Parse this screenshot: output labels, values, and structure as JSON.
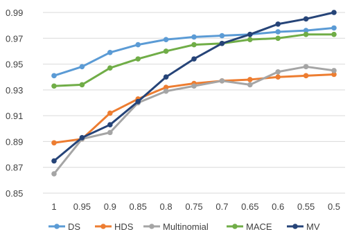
{
  "chart_data": {
    "type": "line",
    "title": "",
    "xlabel": "",
    "ylabel": "",
    "x": [
      "1",
      "0.95",
      "0.9",
      "0.85",
      "0.8",
      "0.75",
      "0.7",
      "0.65",
      "0.6",
      "0.55",
      "0.5"
    ],
    "ylim": [
      0.85,
      0.99
    ],
    "yticks": [
      "0.85",
      "0.87",
      "0.89",
      "0.91",
      "0.93",
      "0.95",
      "0.97",
      "0.99"
    ],
    "grid": true,
    "legend_position": "bottom",
    "series": [
      {
        "name": "DS",
        "color": "#5b9bd5",
        "values": [
          0.941,
          0.948,
          0.959,
          0.965,
          0.969,
          0.971,
          0.972,
          0.973,
          0.975,
          0.976,
          0.978
        ]
      },
      {
        "name": "HDS",
        "color": "#ed7d31",
        "values": [
          0.889,
          0.892,
          0.912,
          0.923,
          0.932,
          0.935,
          0.937,
          0.938,
          0.94,
          0.941,
          0.942
        ]
      },
      {
        "name": "Multinomial",
        "color": "#a5a5a5",
        "values": [
          0.865,
          0.892,
          0.897,
          0.92,
          0.929,
          0.933,
          0.937,
          0.934,
          0.944,
          0.948,
          0.945
        ]
      },
      {
        "name": "MACE",
        "color": "#70ad47",
        "values": [
          0.933,
          0.934,
          0.947,
          0.954,
          0.96,
          0.965,
          0.966,
          0.969,
          0.97,
          0.973,
          0.973
        ]
      },
      {
        "name": "MV",
        "color": "#264478",
        "values": [
          0.875,
          0.893,
          0.903,
          0.921,
          0.94,
          0.954,
          0.966,
          0.973,
          0.981,
          0.985,
          0.99
        ]
      }
    ]
  }
}
